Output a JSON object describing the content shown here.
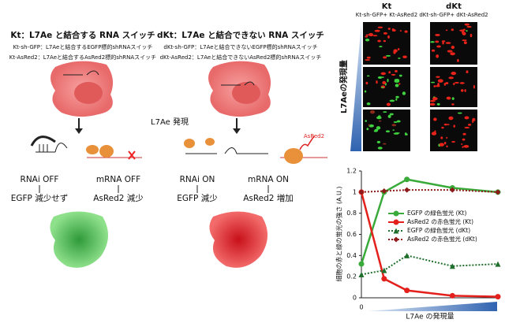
{
  "panels": [
    {
      "title": "Kt：L7Ae と結合する RNA スイッチ",
      "lines": [
        "Kt-sh-GFP：L7Aeと結合するEGFP標的shRNAスイッチ",
        "Kt-AsRed2：L7Aeと結合するAsRed2標的shRNAスイッチ"
      ],
      "outcomes": [
        {
          "label": "RNAi OFF",
          "result": "EGFP 減少せず"
        },
        {
          "label": "mRNA OFF",
          "result": "AsRed2 減少"
        }
      ]
    },
    {
      "title": "dKt：L7Ae と結合できない RNA スイッチ",
      "lines": [
        "dKt-sh-GFP：L7Aeと結合できないEGFP標的shRNAスイッチ",
        "dKt-AsRed2：L7Aeと結合できないAsRed2標的shRNAスイッチ"
      ],
      "outcomes": [
        {
          "label": "RNAi ON",
          "result": "EGFP 減少"
        },
        {
          "label": "mRNA ON",
          "result": "AsRed2 増加"
        }
      ],
      "protein_label": "AsRed2"
    }
  ],
  "center_label": "L7Ae 発現",
  "microscopy": {
    "columns": [
      {
        "title": "Kt",
        "subtitle": "Kt-sh-GFP+ Kt-AsRed2"
      },
      {
        "title": "dKt",
        "subtitle": "dKt-sh-GFP+ dKt-AsRed2"
      }
    ],
    "axis_label": "L7Aeの発現量"
  },
  "chart_data": {
    "type": "line",
    "x": [
      0,
      0.5,
      1,
      2,
      3
    ],
    "xlim": [
      0,
      3
    ],
    "xticks": [
      0
    ],
    "xlabel": "L7Ae の発現量",
    "ylabel": "細胞の赤と緑の蛍光の強さ (A.U.)",
    "ylim": [
      0,
      1.2
    ],
    "yticks": [
      0,
      0.2,
      0.4,
      0.6,
      0.8,
      1,
      1.2
    ],
    "series": [
      {
        "name": "EGFP の緑色蛍光 (Kt)",
        "color": "#3aaa3a",
        "dashed": false,
        "marker": "circle",
        "values": [
          0.32,
          1.0,
          1.12,
          1.04,
          1.0
        ]
      },
      {
        "name": "AsRed2 の赤色蛍光 (Kt)",
        "color": "#e3201b",
        "dashed": false,
        "marker": "circle",
        "values": [
          1.0,
          0.18,
          0.07,
          0.02,
          0.01
        ]
      },
      {
        "name": "EGFP の緑色蛍光 (dKt)",
        "color": "#1f6e2c",
        "dashed": true,
        "marker": "triangle",
        "values": [
          0.22,
          0.26,
          0.4,
          0.3,
          0.32
        ]
      },
      {
        "name": "AsRed2 の赤色蛍光 (dKt)",
        "color": "#8e1b1b",
        "dashed": true,
        "marker": "diamond",
        "values": [
          1.0,
          1.01,
          1.02,
          1.02,
          1.0
        ]
      }
    ]
  }
}
